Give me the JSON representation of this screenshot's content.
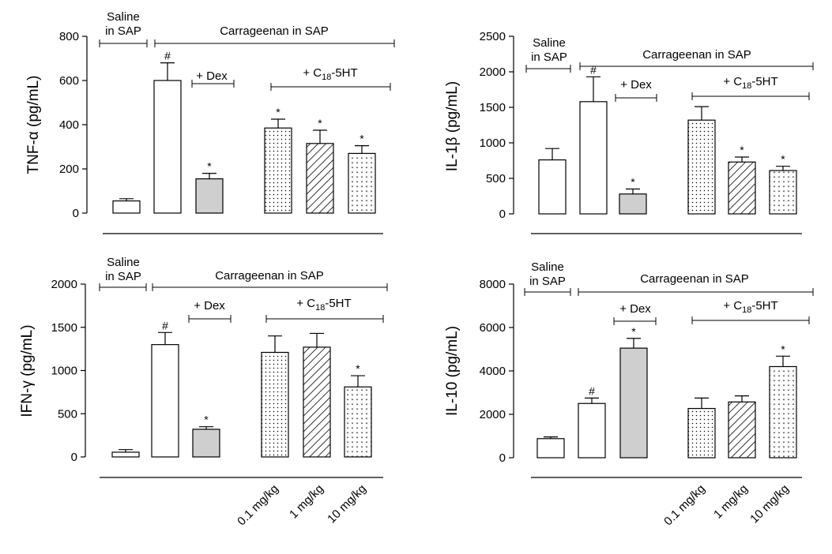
{
  "figure": {
    "groups": {
      "saline_line1": "Saline",
      "saline_line2": "in SAP",
      "carrageenan": "Carrageenan in  SAP",
      "dex": "+ Dex",
      "c18_prefix": "+ C",
      "c18_sub": "18",
      "c18_suffix": "-5HT"
    },
    "doses": [
      "0.1 mg/kg",
      "1 mg/kg",
      "10 mg/kg"
    ]
  },
  "chart_data": [
    {
      "type": "bar",
      "id": "tnf",
      "ylabel": "TNF-α (pg/mL)",
      "ylim": [
        0,
        800
      ],
      "yticks": [
        0,
        200,
        400,
        600,
        800
      ],
      "categories": [
        "Saline in SAP",
        "Carrageenan in SAP",
        "+ Dex",
        "+ C18-5HT 0.1 mg/kg",
        "+ C18-5HT 1 mg/kg",
        "+ C18-5HT 10 mg/kg"
      ],
      "values": [
        55,
        600,
        155,
        385,
        315,
        270
      ],
      "errors": [
        10,
        80,
        25,
        40,
        60,
        35
      ],
      "fills": [
        "white",
        "white",
        "gray",
        "dots",
        "hatch",
        "vdots"
      ],
      "marks": [
        "",
        "#",
        "*",
        "*",
        "*",
        "*"
      ]
    },
    {
      "type": "bar",
      "id": "il1b",
      "ylabel": "IL-1β (pg/mL)",
      "ylim": [
        0,
        2500
      ],
      "yticks": [
        0,
        500,
        1000,
        1500,
        2000,
        2500
      ],
      "categories": [
        "Saline in SAP",
        "Carrageenan in SAP",
        "+ Dex",
        "+ C18-5HT 0.1 mg/kg",
        "+ C18-5HT 1 mg/kg",
        "+ C18-5HT 10 mg/kg"
      ],
      "values": [
        760,
        1580,
        280,
        1320,
        730,
        610
      ],
      "errors": [
        160,
        350,
        70,
        190,
        70,
        60
      ],
      "fills": [
        "white",
        "white",
        "gray",
        "dots",
        "hatch",
        "vdots"
      ],
      "marks": [
        "",
        "#",
        "*",
        "",
        "*",
        "*"
      ]
    },
    {
      "type": "bar",
      "id": "ifng",
      "ylabel": "IFN-γ (pg/mL)",
      "ylim": [
        0,
        2000
      ],
      "yticks": [
        0,
        500,
        1000,
        1500,
        2000
      ],
      "categories": [
        "Saline in SAP",
        "Carrageenan in SAP",
        "+ Dex",
        "+ C18-5HT 0.1 mg/kg",
        "+ C18-5HT 1 mg/kg",
        "+ C18-5HT 10 mg/kg"
      ],
      "values": [
        55,
        1300,
        320,
        1210,
        1270,
        810
      ],
      "errors": [
        30,
        140,
        30,
        190,
        160,
        130
      ],
      "fills": [
        "white",
        "white",
        "gray",
        "dots",
        "hatch",
        "vdots"
      ],
      "marks": [
        "",
        "#",
        "*",
        "",
        "",
        "*"
      ]
    },
    {
      "type": "bar",
      "id": "il10",
      "ylabel": "IL-10 (pg/mL)",
      "ylim": [
        0,
        8000
      ],
      "yticks": [
        0,
        2000,
        4000,
        6000,
        8000
      ],
      "categories": [
        "Saline in SAP",
        "Carrageenan in SAP",
        "+ Dex",
        "+ C18-5HT 0.1 mg/kg",
        "+ C18-5HT 1 mg/kg",
        "+ C18-5HT 10 mg/kg"
      ],
      "values": [
        880,
        2500,
        5050,
        2270,
        2570,
        4200
      ],
      "errors": [
        80,
        250,
        450,
        480,
        280,
        480
      ],
      "fills": [
        "white",
        "white",
        "gray",
        "dots",
        "hatch",
        "vdots"
      ],
      "marks": [
        "",
        "#",
        "*",
        "",
        "",
        "*"
      ]
    }
  ]
}
